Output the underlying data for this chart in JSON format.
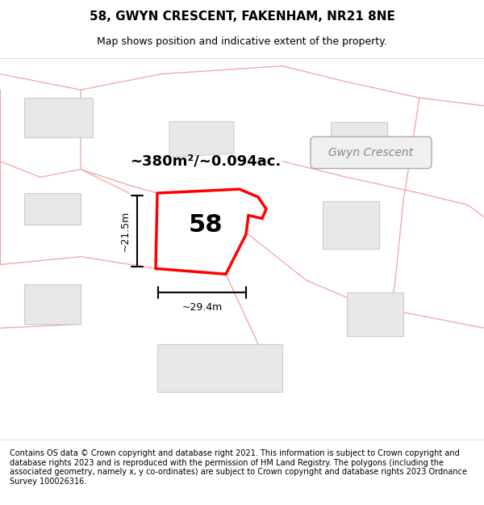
{
  "title": "58, GWYN CRESCENT, FAKENHAM, NR21 8NE",
  "subtitle": "Map shows position and indicative extent of the property.",
  "footer": "Contains OS data © Crown copyright and database right 2021. This information is subject to Crown copyright and database rights 2023 and is reproduced with the permission of HM Land Registry. The polygons (including the associated geometry, namely x, y co-ordinates) are subject to Crown copyright and database rights 2023 Ordnance Survey 100026316.",
  "background_color": "#f5f0f0",
  "map_bg": "#ffffff",
  "title_bg": "#ffffff",
  "footer_bg": "#ffffff",
  "red_color": "#ff0000",
  "pink_color": "#f4aaaa",
  "gray_color": "#c8c8c8",
  "dim_color": "#d0d0d0",
  "street_label": "Gwyn Crescent",
  "plot_label": "58",
  "area_label": "~380m²/~0.094ac.",
  "width_label": "~29.4m",
  "height_label": "~21.5m",
  "title_fontsize": 11,
  "subtitle_fontsize": 9,
  "footer_fontsize": 7.0
}
